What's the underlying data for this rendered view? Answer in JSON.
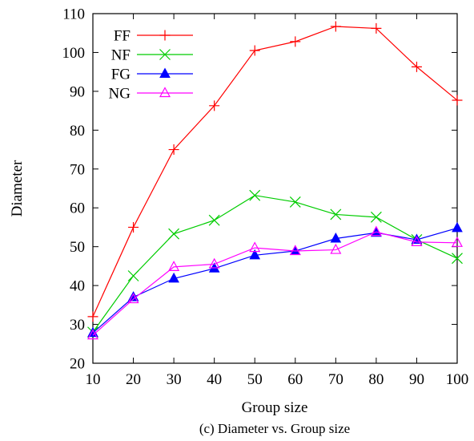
{
  "chart_data": {
    "type": "line",
    "title": "",
    "xlabel": "Group size",
    "ylabel": "Diameter",
    "caption": "(c) Diameter vs. Group size",
    "x": [
      10,
      20,
      30,
      40,
      50,
      60,
      70,
      80,
      90,
      100
    ],
    "xlim": [
      10,
      100
    ],
    "ylim": [
      20,
      110
    ],
    "xticks": [
      10,
      20,
      30,
      40,
      50,
      60,
      70,
      80,
      90,
      100
    ],
    "yticks": [
      20,
      30,
      40,
      50,
      60,
      70,
      80,
      90,
      100,
      110
    ],
    "grid": false,
    "legend_position": "top-left",
    "series": [
      {
        "name": "FF",
        "color": "#ff0000",
        "marker": "plus",
        "values": [
          32,
          55,
          75,
          86.3,
          100.5,
          102.8,
          106.7,
          106.2,
          96.3,
          87.7
        ]
      },
      {
        "name": "NF",
        "color": "#00cc00",
        "marker": "cross",
        "values": [
          28,
          42.5,
          53.3,
          56.8,
          63.2,
          61.5,
          58.3,
          57.6,
          51.8,
          47
        ]
      },
      {
        "name": "FG",
        "color": "#0000ff",
        "marker": "filled-triangle",
        "values": [
          27.8,
          37,
          41.8,
          44.4,
          47.8,
          48.9,
          52.1,
          53.6,
          51.8,
          54.8
        ]
      },
      {
        "name": "NG",
        "color": "#ff00ff",
        "marker": "open-triangle",
        "values": [
          27.2,
          36.5,
          44.8,
          45.5,
          49.7,
          48.9,
          49.2,
          53.8,
          51.2,
          51
        ]
      }
    ]
  }
}
